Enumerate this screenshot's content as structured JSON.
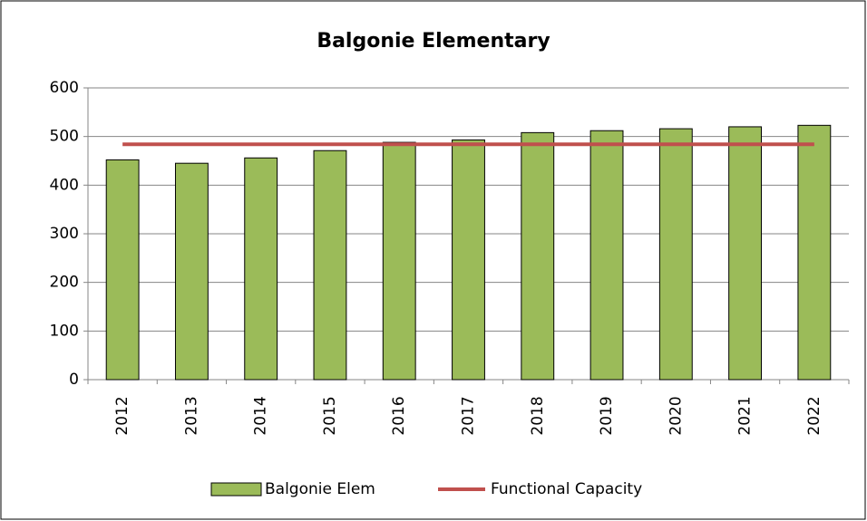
{
  "chart_data": {
    "type": "bar",
    "title": "Balgonie Elementary",
    "categories": [
      "2012",
      "2013",
      "2014",
      "2015",
      "2016",
      "2017",
      "2018",
      "2019",
      "2020",
      "2021",
      "2022"
    ],
    "series": [
      {
        "name": "Balgonie Elem",
        "type": "bar",
        "color": "#9bbb59",
        "values": [
          452,
          445,
          456,
          471,
          488,
          493,
          508,
          512,
          516,
          520,
          523
        ]
      },
      {
        "name": "Functional Capacity",
        "type": "line",
        "color": "#c0504d",
        "values": [
          484,
          484,
          484,
          484,
          484,
          484,
          484,
          484,
          484,
          484,
          484
        ]
      }
    ],
    "ylim": [
      0,
      600
    ],
    "yticks": [
      0,
      100,
      200,
      300,
      400,
      500,
      600
    ],
    "grid": true,
    "legend": "bottom"
  }
}
